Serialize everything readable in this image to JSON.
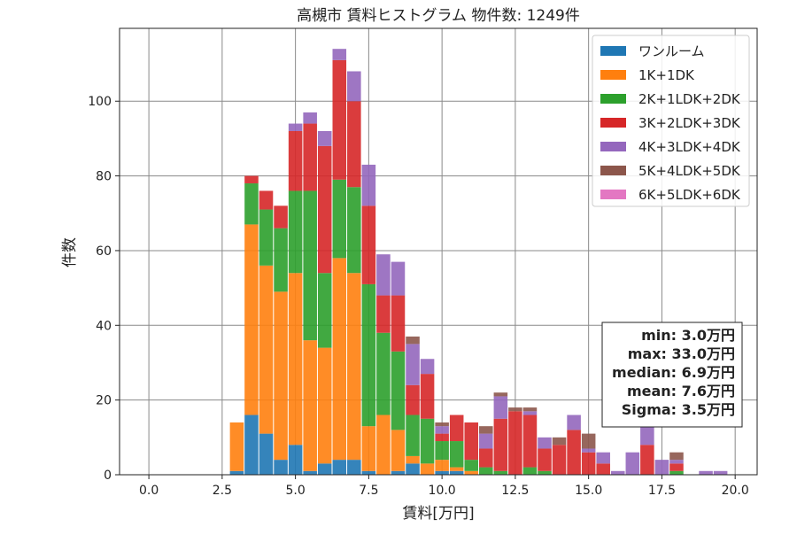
{
  "chart_data": {
    "type": "bar",
    "title": "高槻市 賃料ヒストグラム  物件数: 1249件",
    "xlabel": "賃料[万円]",
    "ylabel": "件数",
    "xlim": [
      -1.0,
      20.75
    ],
    "ylim": [
      0,
      119.5
    ],
    "xticks": [
      0.0,
      2.5,
      5.0,
      7.5,
      10.0,
      12.5,
      15.0,
      17.5,
      20.0
    ],
    "xtick_labels": [
      "0.0",
      "2.5",
      "5.0",
      "7.5",
      "10.0",
      "12.5",
      "15.0",
      "17.5",
      "20.0"
    ],
    "yticks": [
      0,
      20,
      40,
      60,
      80,
      100
    ],
    "ytick_labels": [
      "0",
      "20",
      "40",
      "60",
      "80",
      "100"
    ],
    "grid": true,
    "stacked": true,
    "legend_position": "top-right",
    "bin_width": 0.5,
    "categories": [
      3.0,
      3.5,
      4.0,
      4.5,
      5.0,
      5.5,
      6.0,
      6.5,
      7.0,
      7.5,
      8.0,
      8.5,
      9.0,
      9.5,
      10.0,
      10.5,
      11.0,
      11.5,
      12.0,
      12.5,
      13.0,
      13.5,
      14.0,
      14.5,
      15.0,
      15.5,
      16.0,
      16.5,
      17.0,
      17.5,
      18.0,
      18.5,
      19.0,
      19.5
    ],
    "series": [
      {
        "name": "ワンルーム",
        "color": "#1f77b4",
        "values": [
          1,
          16,
          11,
          4,
          8,
          1,
          3,
          4,
          4,
          1,
          0,
          1,
          3,
          0,
          1,
          1,
          0,
          0,
          0,
          0,
          0,
          0,
          0,
          0,
          0,
          0,
          0,
          0,
          0,
          0,
          0,
          0,
          0,
          0
        ]
      },
      {
        "name": "1K+1DK",
        "color": "#ff7f0e",
        "values": [
          13,
          51,
          45,
          45,
          46,
          35,
          31,
          54,
          50,
          12,
          16,
          11,
          2,
          3,
          3,
          1,
          1,
          0,
          0,
          0,
          0,
          0,
          0,
          0,
          0,
          0,
          0,
          0,
          0,
          0,
          0,
          0,
          0,
          0
        ]
      },
      {
        "name": "2K+1LDK+2DK",
        "color": "#2ca02c",
        "values": [
          0,
          11,
          15,
          17,
          22,
          40,
          20,
          21,
          23,
          38,
          22,
          21,
          11,
          12,
          5,
          7,
          3,
          2,
          1,
          0,
          2,
          1,
          0,
          0,
          0,
          0,
          0,
          0,
          0,
          0,
          1,
          0,
          0,
          0
        ]
      },
      {
        "name": "3K+2LDK+3DK",
        "color": "#d62728",
        "values": [
          0,
          2,
          5,
          6,
          16,
          18,
          34,
          32,
          23,
          21,
          10,
          15,
          8,
          12,
          2,
          7,
          10,
          5,
          14,
          17,
          14,
          6,
          8,
          12,
          6,
          3,
          0,
          0,
          8,
          0,
          2,
          0,
          0,
          0
        ]
      },
      {
        "name": "4K+3LDK+4DK",
        "color": "#9467bd",
        "values": [
          0,
          0,
          0,
          0,
          2,
          3,
          4,
          3,
          8,
          11,
          11,
          9,
          11,
          4,
          2,
          0,
          0,
          4,
          6,
          0,
          1,
          3,
          0,
          4,
          1,
          3,
          1,
          6,
          5,
          4,
          1,
          0,
          1,
          1
        ]
      },
      {
        "name": "5K+4LDK+5DK",
        "color": "#8c564b",
        "values": [
          0,
          0,
          0,
          0,
          0,
          0,
          0,
          0,
          0,
          0,
          0,
          0,
          2,
          0,
          1,
          0,
          0,
          2,
          1,
          1,
          1,
          0,
          2,
          0,
          4,
          0,
          0,
          0,
          0,
          0,
          2,
          0,
          0,
          0
        ]
      },
      {
        "name": "6K+5LDK+6DK",
        "color": "#e377c2",
        "values": [
          0,
          0,
          0,
          0,
          0,
          0,
          0,
          0,
          0,
          0,
          0,
          0,
          0,
          0,
          0,
          0,
          0,
          0,
          0,
          0,
          0,
          0,
          0,
          0,
          0,
          0,
          0,
          0,
          0,
          0,
          0,
          0,
          0,
          0
        ]
      }
    ],
    "stats": [
      "min: 3.0万円",
      "max: 33.0万円",
      "median: 6.9万円",
      "mean: 7.6万円",
      "Sigma: 3.5万円"
    ]
  }
}
